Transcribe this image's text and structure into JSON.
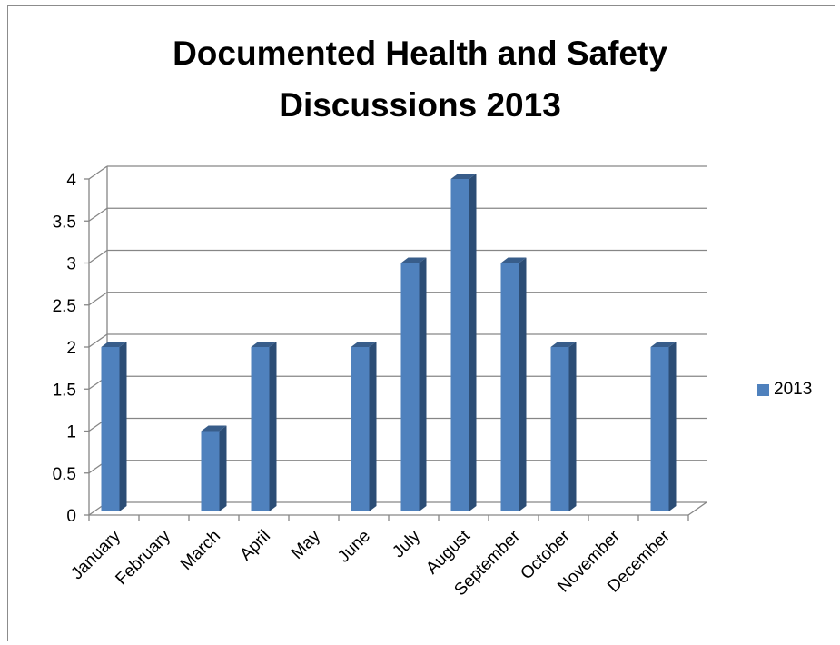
{
  "chart_data": {
    "type": "bar",
    "title": "Documented Health and Safety\nDiscussions 2013",
    "categories": [
      "January",
      "February",
      "March",
      "April",
      "May",
      "June",
      "July",
      "August",
      "September",
      "October",
      "November",
      "December"
    ],
    "series": [
      {
        "name": "2013",
        "values": [
          2,
          0,
          1,
          2,
          0,
          2,
          3,
          4,
          3,
          2,
          0,
          2
        ],
        "color": "#4f81bd"
      }
    ],
    "ylim": [
      0,
      4
    ],
    "yticks": [
      "0",
      "0.5",
      "1",
      "1.5",
      "2",
      "2.5",
      "3",
      "3.5",
      "4"
    ],
    "grid": true,
    "legend": "right",
    "style": "3d-column"
  }
}
